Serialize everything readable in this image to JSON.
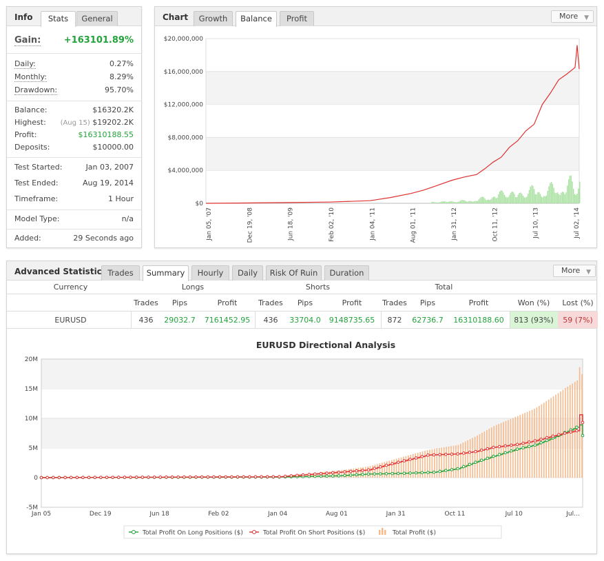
{
  "info_panel": {
    "title": "Info",
    "tabs": [
      {
        "label": "Stats",
        "active": true
      },
      {
        "label": "General",
        "active": false
      }
    ],
    "gain": {
      "label": "Gain:",
      "value": "+163101.89%"
    },
    "daily": {
      "label": "Daily:",
      "value": "0.27%"
    },
    "monthly": {
      "label": "Monthly:",
      "value": "8.29%"
    },
    "drawdown": {
      "label": "Drawdown:",
      "value": "95.70%"
    },
    "balance": {
      "label": "Balance:",
      "value": "$16320.2K"
    },
    "highest": {
      "label": "Highest:",
      "date": "(Aug 15)",
      "value": "$19202.2K"
    },
    "profit": {
      "label": "Profit:",
      "value": "$16310188.55"
    },
    "deposits": {
      "label": "Deposits:",
      "value": "$10000.00"
    },
    "test_started": {
      "label": "Test Started:",
      "value": "Jan 03, 2007"
    },
    "test_ended": {
      "label": "Test Ended:",
      "value": "Aug 19, 2014"
    },
    "timeframe": {
      "label": "Timeframe:",
      "value": "1 Hour"
    },
    "model_type": {
      "label": "Model Type:",
      "value": "n/a"
    },
    "added": {
      "label": "Added:",
      "value": "29 Seconds ago"
    }
  },
  "chart_panel": {
    "title": "Chart",
    "tabs": [
      {
        "label": "Growth",
        "active": false
      },
      {
        "label": "Balance",
        "active": true
      },
      {
        "label": "Profit",
        "active": false
      }
    ],
    "more_label": "More",
    "colors": {
      "balance_line": "#e03030",
      "volume_bars": "#a8e0a0"
    }
  },
  "advanced_panel": {
    "title": "Advanced Statistics",
    "tabs": [
      {
        "label": "Trades",
        "active": false
      },
      {
        "label": "Summary",
        "active": true
      },
      {
        "label": "Hourly",
        "active": false
      },
      {
        "label": "Daily",
        "active": false
      },
      {
        "label": "Risk Of Ruin",
        "active": false
      },
      {
        "label": "Duration",
        "active": false
      }
    ],
    "more_label": "More",
    "table": {
      "group_headers": {
        "currency": "Currency",
        "longs": "Longs",
        "shorts": "Shorts",
        "total": "Total"
      },
      "sub_headers": {
        "long_trades": "Trades",
        "long_pips": "Pips",
        "long_profit": "Profit",
        "short_trades": "Trades",
        "short_pips": "Pips",
        "short_profit": "Profit",
        "total_trades": "Trades",
        "total_pips": "Pips",
        "total_profit": "Profit",
        "won": "Won (%)",
        "lost": "Lost (%)"
      },
      "row": {
        "currency": "EURUSD",
        "long_trades": "436",
        "long_pips": "29032.7",
        "long_profit": "7161452.95",
        "short_trades": "436",
        "short_pips": "33704.0",
        "short_profit": "9148735.65",
        "total_trades": "872",
        "total_pips": "62736.7",
        "total_profit": "16310188.60",
        "won": "813 (93%)",
        "lost": "59 (7%)"
      },
      "colors": {
        "won_bg": "#d9f5d6",
        "lost_bg": "#f8d9d9",
        "positive_text": "#22a33a"
      }
    }
  },
  "chart_data": [
    {
      "type": "line",
      "title": "",
      "xlabel": "",
      "ylabel": "",
      "x_tick_labels": [
        "Jan 05, '07",
        "Dec 19, '08",
        "Jun 18, '09",
        "Feb 02, '10",
        "Jan 04, '11",
        "Aug 01, '11",
        "Jan 31, '12",
        "Oct 11, '12",
        "Jul 10, '13",
        "Jul 02, '14"
      ],
      "y_tick_labels": [
        "$0",
        "$4,000,000",
        "$8,000,000",
        "$12,000,000",
        "$16,000,000",
        "$20,000,000"
      ],
      "ylim": [
        0,
        20000000
      ],
      "grid": true,
      "series": [
        {
          "x": [
            0,
            1,
            2,
            3,
            4,
            4.5,
            5,
            5.3,
            5.6,
            6,
            6.3,
            6.6,
            6.8,
            7,
            7.2,
            7.4,
            7.6,
            7.8,
            8,
            8.2,
            8.4,
            8.6,
            8.8,
            9,
            9.05,
            9.1
          ],
          "values": [
            0,
            40000,
            90000,
            150000,
            320000,
            700000,
            1200000,
            1600000,
            2100000,
            2800000,
            3200000,
            3500000,
            4200000,
            5000000,
            5600000,
            6800000,
            7600000,
            8800000,
            9600000,
            12000000,
            13400000,
            15000000,
            15700000,
            16500000,
            19200000,
            16300000
          ]
        }
      ],
      "bars": {
        "x": [
          5.5,
          6,
          6.5,
          7,
          7.3,
          7.6,
          8,
          8.2,
          8.5,
          8.7,
          8.9,
          9,
          9.1
        ],
        "values": [
          200000,
          350000,
          500000,
          1200000,
          2000000,
          1500000,
          2500000,
          1800000,
          3000000,
          2200000,
          3800000,
          2600000,
          4000000
        ]
      }
    },
    {
      "type": "line",
      "title": "EURUSD Directional Analysis",
      "xlabel": "",
      "ylabel": "",
      "x_tick_labels": [
        "Jan 05",
        "Dec 19",
        "Jun 18",
        "Feb 02",
        "Jan 04",
        "Aug 01",
        "Jan 31",
        "Oct 11",
        "Jul 10",
        "Jul..."
      ],
      "y_tick_labels": [
        "-5M",
        "0",
        "5M",
        "10M",
        "15M",
        "20M"
      ],
      "ylim": [
        -5000000,
        20000000
      ],
      "grid": true,
      "legend": "bottom",
      "legend_labels": [
        "Total Profit On Long Positions ($)",
        "Total Profit On Short Positions ($)",
        "Total Profit ($)"
      ],
      "series": [
        {
          "name": "Total Profit On Long Positions ($)",
          "color": "#22a33a",
          "x": [
            0,
            4,
            5,
            5.5,
            6,
            6.6,
            7,
            7.3,
            7.6,
            8,
            8.3,
            8.6,
            8.8,
            9,
            9.05,
            9.1
          ],
          "values": [
            0,
            100000,
            300000,
            600000,
            700000,
            900000,
            1500000,
            2600000,
            3600000,
            4800000,
            5500000,
            6700000,
            7600000,
            8500000,
            8900000,
            7100000
          ]
        },
        {
          "name": "Total Profit On Short Positions ($)",
          "color": "#e03030",
          "x": [
            0,
            4,
            5,
            5.5,
            6,
            6.5,
            7,
            7.3,
            7.6,
            8,
            8.3,
            8.6,
            8.8,
            9,
            9.05,
            9.1
          ],
          "values": [
            0,
            150000,
            900000,
            1300000,
            2600000,
            3800000,
            4000000,
            4400000,
            5100000,
            5600000,
            6200000,
            7000000,
            7500000,
            7900000,
            10600000,
            9300000
          ]
        },
        {
          "name": "Total Profit ($)",
          "color": "#f5b98a",
          "type": "bar",
          "x": [
            0,
            4,
            5,
            5.5,
            6,
            6.5,
            7,
            7.3,
            7.6,
            8,
            8.3,
            8.6,
            8.8,
            9,
            9.05,
            9.1
          ],
          "values": [
            0,
            250000,
            1200000,
            1900000,
            3300000,
            4700000,
            5500000,
            7000000,
            8700000,
            10400000,
            11700000,
            13700000,
            15100000,
            16400000,
            19200000,
            16300000
          ]
        }
      ]
    }
  ]
}
